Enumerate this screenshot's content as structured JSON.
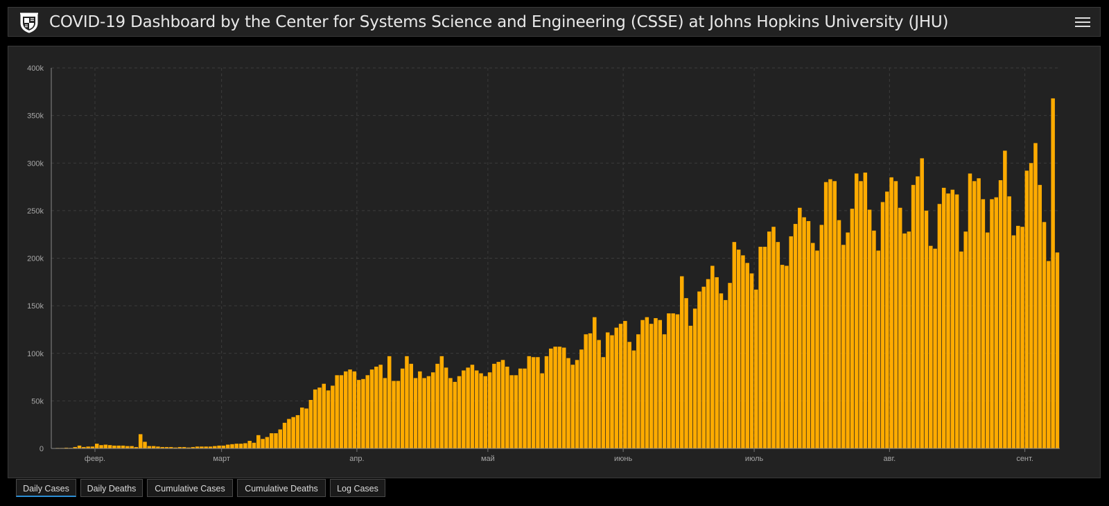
{
  "header": {
    "title": "COVID-19 Dashboard by the Center for Systems Science and Engineering (CSSE) at Johns Hopkins University (JHU)",
    "logo_icon": "jhu-shield-icon",
    "menu_icon": "hamburger-menu-icon"
  },
  "tabs": [
    {
      "label": "Daily Cases",
      "active": true
    },
    {
      "label": "Daily Deaths",
      "active": false
    },
    {
      "label": "Cumulative Cases",
      "active": false
    },
    {
      "label": "Cumulative Deaths",
      "active": false
    },
    {
      "label": "Log Cases",
      "active": false
    }
  ],
  "chart_data": {
    "type": "bar",
    "title": "",
    "xlabel": "",
    "ylabel": "",
    "bar_color": "#ffab00",
    "background": "#222222",
    "grid": true,
    "ylim": [
      0,
      400000
    ],
    "y_ticks": [
      0,
      50000,
      100000,
      150000,
      200000,
      250000,
      300000,
      350000,
      400000
    ],
    "y_tick_labels": [
      "0",
      "50k",
      "100k",
      "150k",
      "200k",
      "250k",
      "300k",
      "350k",
      "400k"
    ],
    "x_ticks": [
      {
        "label": "февр.",
        "index": 10
      },
      {
        "label": "март",
        "index": 39
      },
      {
        "label": "апр.",
        "index": 70
      },
      {
        "label": "май",
        "index": 100
      },
      {
        "label": "июнь",
        "index": 131
      },
      {
        "label": "июль",
        "index": 161
      },
      {
        "label": "авг.",
        "index": 192
      },
      {
        "label": "сент.",
        "index": 223
      }
    ],
    "values": [
      0,
      500,
      500,
      800,
      600,
      1500,
      3000,
      1500,
      2000,
      2000,
      5000,
      3500,
      4000,
      3500,
      3000,
      3000,
      3000,
      2500,
      2500,
      1500,
      15000,
      7000,
      2500,
      2500,
      2000,
      1500,
      1500,
      1500,
      1000,
      1500,
      1500,
      1000,
      1500,
      2000,
      2000,
      2000,
      2000,
      2500,
      3000,
      3000,
      4000,
      4500,
      5000,
      5000,
      5500,
      8000,
      6000,
      14000,
      10000,
      12000,
      16000,
      16000,
      20000,
      27000,
      31000,
      33000,
      35000,
      43000,
      42000,
      51000,
      62000,
      64000,
      68000,
      61000,
      66000,
      77000,
      77000,
      81000,
      83000,
      81000,
      72000,
      73000,
      77000,
      83000,
      86000,
      88000,
      74000,
      97000,
      71000,
      71000,
      84000,
      97000,
      89000,
      74000,
      81000,
      74000,
      76000,
      80000,
      89000,
      97000,
      85000,
      74000,
      70000,
      76000,
      82000,
      85000,
      88000,
      82000,
      79000,
      76000,
      80000,
      89000,
      91000,
      93000,
      86000,
      77000,
      77000,
      84000,
      84000,
      97000,
      96000,
      96000,
      79000,
      97000,
      105000,
      107000,
      107000,
      106000,
      95000,
      88000,
      93000,
      104000,
      120000,
      121000,
      138000,
      114000,
      96000,
      122000,
      119000,
      127000,
      131000,
      134000,
      112000,
      103000,
      120000,
      135000,
      138000,
      131000,
      137000,
      135000,
      120000,
      142000,
      142000,
      141000,
      181000,
      158000,
      129000,
      147000,
      165000,
      170000,
      178000,
      192000,
      180000,
      163000,
      156000,
      174000,
      217000,
      209000,
      203000,
      195000,
      184000,
      167000,
      212000,
      212000,
      228000,
      233000,
      217000,
      193000,
      192000,
      223000,
      236000,
      253000,
      243000,
      239000,
      216000,
      208000,
      235000,
      280000,
      283000,
      281000,
      240000,
      214000,
      227000,
      252000,
      289000,
      281000,
      290000,
      251000,
      229000,
      208000,
      259000,
      270000,
      285000,
      281000,
      253000,
      226000,
      228000,
      277000,
      286000,
      305000,
      250000,
      213000,
      210000,
      257000,
      274000,
      268000,
      272000,
      267000,
      207000,
      228000,
      289000,
      281000,
      284000,
      262000,
      227000,
      262000,
      264000,
      282000,
      313000,
      265000,
      224000,
      234000,
      233000,
      292000,
      300000,
      321000,
      277000,
      238000,
      197000,
      368000,
      206000
    ]
  }
}
